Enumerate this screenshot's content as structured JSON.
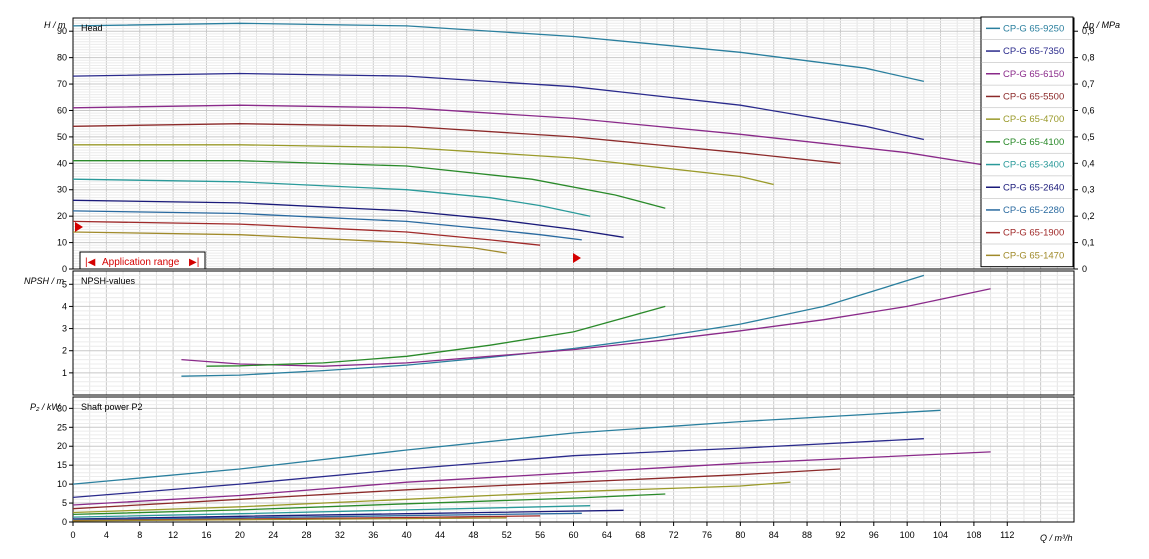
{
  "x_axis": {
    "label": "Q / m³/h",
    "min": 0,
    "max": 120,
    "ticks": [
      0,
      4,
      8,
      12,
      16,
      20,
      24,
      28,
      32,
      36,
      40,
      44,
      48,
      52,
      56,
      60,
      64,
      68,
      72,
      76,
      80,
      84,
      88,
      92,
      96,
      100,
      104,
      108,
      112
    ]
  },
  "panels": {
    "head": {
      "title": "Head",
      "ylabel": "H / m",
      "ylim": [
        0,
        95
      ],
      "yticks": [
        0,
        10,
        20,
        30,
        40,
        50,
        60,
        70,
        80,
        90
      ],
      "right_label": "Δp / MPa",
      "right_ticks": [
        0,
        0.1,
        0.2,
        0.3,
        0.4,
        0.5,
        0.6,
        0.7,
        0.8,
        0.9
      ],
      "right_tick_labels": [
        "0",
        "0,1",
        "0,2",
        "0,3",
        "0,4",
        "0,5",
        "0,6",
        "0,7",
        "0,8",
        "0,9"
      ]
    },
    "npsh": {
      "title": "NPSH-values",
      "ylabel": "NPSH / m",
      "ylim": [
        0,
        5.6
      ],
      "yticks": [
        1,
        2,
        3,
        4,
        5
      ]
    },
    "power": {
      "title": "Shaft power P2",
      "ylabel": "P₂ / kW",
      "ylim": [
        0,
        33
      ],
      "yticks": [
        0,
        5,
        10,
        15,
        20,
        25,
        30
      ]
    }
  },
  "application_range": {
    "label": "Application range",
    "marker_left": "|◀",
    "marker_right": "▶|"
  },
  "legend": [
    {
      "name": "CP-G 65-9250",
      "color": "#2a7f9e"
    },
    {
      "name": "CP-G 65-7350",
      "color": "#2a2a8c"
    },
    {
      "name": "CP-G 65-6150",
      "color": "#8a2a8a"
    },
    {
      "name": "CP-G 65-5500",
      "color": "#8c2a2a"
    },
    {
      "name": "CP-G 65-4700",
      "color": "#9a9a2a"
    },
    {
      "name": "CP-G 65-4100",
      "color": "#2a8a2a"
    },
    {
      "name": "CP-G 65-3400",
      "color": "#2a9a9a"
    },
    {
      "name": "CP-G 65-2640",
      "color": "#1a1a7a"
    },
    {
      "name": "CP-G 65-2280",
      "color": "#2a6aa0"
    },
    {
      "name": "CP-G 65-1900",
      "color": "#a02a2a"
    },
    {
      "name": "CP-G 65-1470",
      "color": "#a08a2a"
    }
  ],
  "chart_data": [
    {
      "type": "line",
      "title": "Head",
      "xlabel": "Q / m³/h",
      "ylabel": "H / m",
      "ylim": [
        0,
        95
      ],
      "series": [
        {
          "name": "CP-G 65-9250",
          "x": [
            0,
            20,
            40,
            60,
            80,
            95,
            102
          ],
          "y": [
            92,
            93,
            92,
            88,
            82,
            76,
            71
          ]
        },
        {
          "name": "CP-G 65-7350",
          "x": [
            0,
            20,
            40,
            60,
            80,
            95,
            102
          ],
          "y": [
            73,
            74,
            73,
            69,
            62,
            54,
            49
          ]
        },
        {
          "name": "CP-G 65-6150",
          "x": [
            0,
            20,
            40,
            60,
            80,
            100,
            110
          ],
          "y": [
            61,
            62,
            61,
            57,
            51,
            44,
            39
          ]
        },
        {
          "name": "CP-G 65-5500",
          "x": [
            0,
            20,
            40,
            60,
            80,
            92
          ],
          "y": [
            54,
            55,
            54,
            50,
            44,
            40
          ]
        },
        {
          "name": "CP-G 65-4700",
          "x": [
            0,
            20,
            40,
            60,
            80,
            84
          ],
          "y": [
            47,
            47,
            46,
            42,
            35,
            32
          ]
        },
        {
          "name": "CP-G 65-4100",
          "x": [
            0,
            20,
            40,
            55,
            65,
            71
          ],
          "y": [
            41,
            41,
            39,
            34,
            28,
            23
          ]
        },
        {
          "name": "CP-G 65-3400",
          "x": [
            0,
            20,
            40,
            50,
            56,
            62
          ],
          "y": [
            34,
            33,
            30,
            27,
            24,
            20
          ]
        },
        {
          "name": "CP-G 65-2640",
          "x": [
            0,
            20,
            40,
            50,
            60,
            66
          ],
          "y": [
            26,
            25,
            22,
            19,
            15,
            12
          ]
        },
        {
          "name": "CP-G 65-2280",
          "x": [
            0,
            20,
            40,
            50,
            56,
            61
          ],
          "y": [
            22,
            21,
            18,
            15,
            13,
            11
          ]
        },
        {
          "name": "CP-G 65-1900",
          "x": [
            0,
            20,
            40,
            50,
            56
          ],
          "y": [
            18,
            17,
            14,
            11,
            9
          ]
        },
        {
          "name": "CP-G 65-1470",
          "x": [
            0,
            20,
            40,
            48,
            52
          ],
          "y": [
            14,
            13,
            10,
            8,
            6
          ]
        }
      ]
    },
    {
      "type": "line",
      "title": "NPSH-values",
      "xlabel": "Q / m³/h",
      "ylabel": "NPSH / m",
      "ylim": [
        0,
        5.6
      ],
      "series": [
        {
          "name": "CP-G 65-9250",
          "x": [
            13,
            20,
            30,
            40,
            50,
            60,
            70,
            80,
            90,
            102
          ],
          "y": [
            0.85,
            0.9,
            1.1,
            1.35,
            1.7,
            2.1,
            2.6,
            3.2,
            4.0,
            5.4
          ]
        },
        {
          "name": "CP-G 65-6150",
          "x": [
            13,
            20,
            30,
            40,
            50,
            60,
            70,
            80,
            90,
            100,
            110
          ],
          "y": [
            1.6,
            1.4,
            1.3,
            1.45,
            1.75,
            2.05,
            2.45,
            2.9,
            3.4,
            4.0,
            4.8
          ]
        },
        {
          "name": "CP-G 65-4100",
          "x": [
            16,
            20,
            30,
            40,
            50,
            60,
            71
          ],
          "y": [
            1.3,
            1.32,
            1.45,
            1.75,
            2.25,
            2.85,
            4.0
          ]
        }
      ]
    },
    {
      "type": "line",
      "title": "Shaft power P2",
      "xlabel": "Q / m³/h",
      "ylabel": "P₂ / kW",
      "ylim": [
        0,
        33
      ],
      "series": [
        {
          "name": "CP-G 65-9250",
          "x": [
            0,
            20,
            40,
            60,
            80,
            104
          ],
          "y": [
            10,
            14,
            19,
            23.5,
            26.5,
            29.5
          ]
        },
        {
          "name": "CP-G 65-7350",
          "x": [
            0,
            20,
            40,
            60,
            80,
            102
          ],
          "y": [
            6.5,
            10,
            14,
            17.5,
            19.5,
            22
          ]
        },
        {
          "name": "CP-G 65-6150",
          "x": [
            0,
            20,
            40,
            60,
            80,
            110
          ],
          "y": [
            4.5,
            7,
            10.5,
            13,
            15.5,
            18.5
          ]
        },
        {
          "name": "CP-G 65-5500",
          "x": [
            0,
            20,
            40,
            60,
            80,
            92
          ],
          "y": [
            3.5,
            6,
            8.5,
            10.5,
            12.5,
            14
          ]
        },
        {
          "name": "CP-G 65-4700",
          "x": [
            0,
            20,
            40,
            60,
            80,
            86
          ],
          "y": [
            2.5,
            4,
            6,
            8,
            9.5,
            10.5
          ]
        },
        {
          "name": "CP-G 65-4100",
          "x": [
            0,
            20,
            40,
            60,
            71
          ],
          "y": [
            2,
            3.2,
            4.8,
            6.3,
            7.4
          ]
        },
        {
          "name": "CP-G 65-3400",
          "x": [
            0,
            20,
            40,
            62
          ],
          "y": [
            1.3,
            2.2,
            3.2,
            4.3
          ]
        },
        {
          "name": "CP-G 65-2640",
          "x": [
            0,
            20,
            40,
            66
          ],
          "y": [
            0.8,
            1.5,
            2.2,
            3.1
          ]
        },
        {
          "name": "CP-G 65-2280",
          "x": [
            0,
            20,
            40,
            61
          ],
          "y": [
            0.6,
            1.1,
            1.7,
            2.3
          ]
        },
        {
          "name": "CP-G 65-1900",
          "x": [
            0,
            20,
            40,
            56
          ],
          "y": [
            0.4,
            0.8,
            1.2,
            1.6
          ]
        },
        {
          "name": "CP-G 65-1470",
          "x": [
            0,
            20,
            40,
            52
          ],
          "y": [
            0.3,
            0.6,
            0.9,
            1.1
          ]
        }
      ]
    }
  ]
}
